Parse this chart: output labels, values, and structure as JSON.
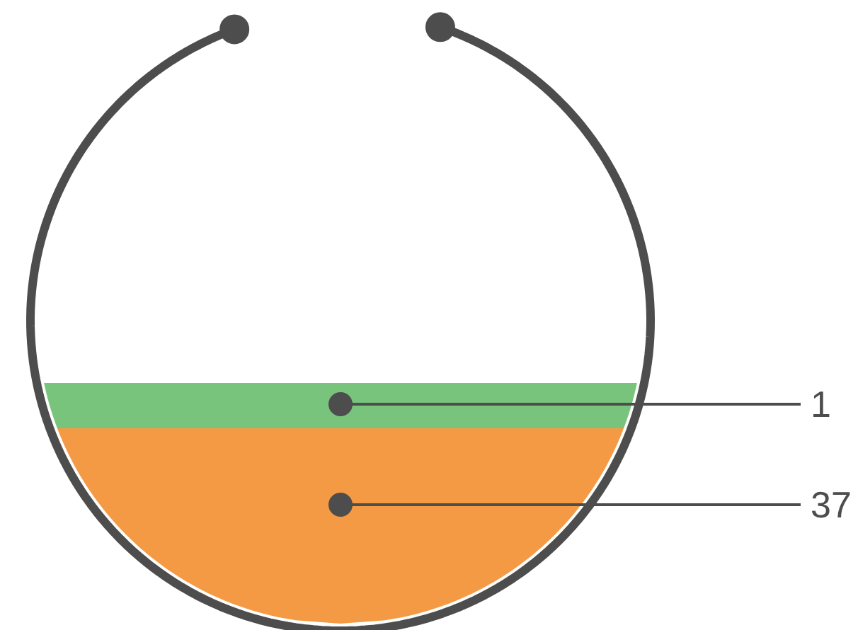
{
  "chart_data": {
    "type": "other",
    "categories": [
      null,
      null
    ],
    "values": [
      1,
      37
    ],
    "colors": [
      "#78c47c",
      "#f59a44"
    ],
    "data_labels": true
  }
}
